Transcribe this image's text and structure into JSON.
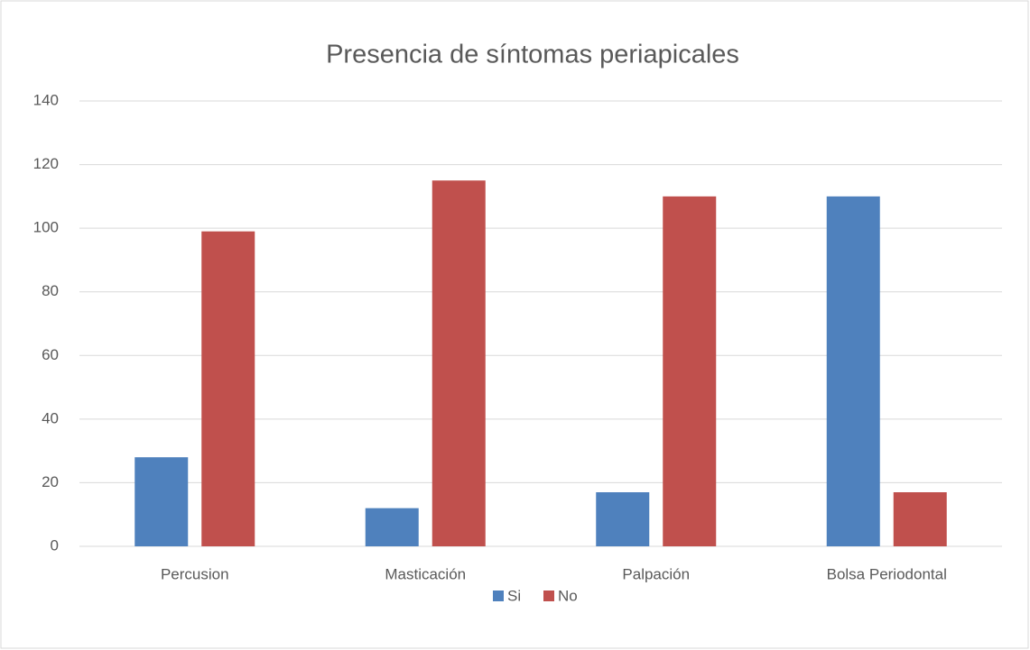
{
  "chart_data": {
    "type": "bar",
    "title": "Presencia de síntomas periapicales",
    "categories": [
      "Percusion",
      "Masticación",
      "Palpación",
      "Bolsa Periodontal"
    ],
    "series": [
      {
        "name": "Si",
        "color": "#4f81bd",
        "values": [
          28,
          12,
          17,
          110
        ]
      },
      {
        "name": "No",
        "color": "#c0504d",
        "values": [
          99,
          115,
          110,
          17
        ]
      }
    ],
    "ylim": [
      0,
      140
    ],
    "yticks": [
      0,
      20,
      40,
      60,
      80,
      100,
      120,
      140
    ],
    "grid": true,
    "legend": "bottom"
  }
}
